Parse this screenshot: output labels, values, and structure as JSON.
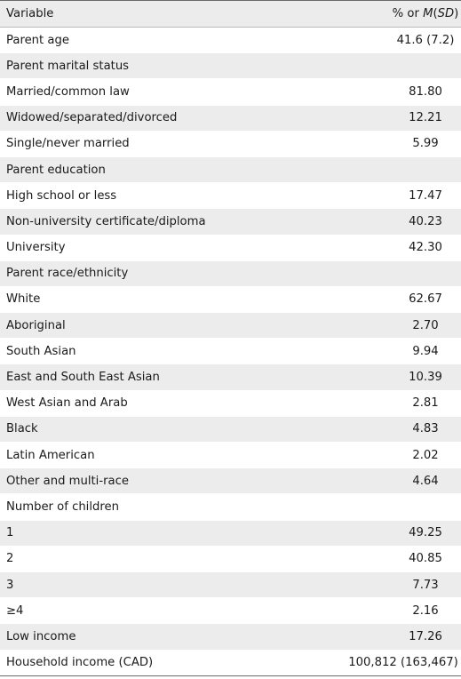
{
  "header": {
    "variable": "Variable",
    "value_prefix": "% or ",
    "value_m": "M",
    "value_open": "(",
    "value_sd": "SD",
    "value_close": ")"
  },
  "rows": [
    {
      "label": "Parent age",
      "value": "41.6 (7.2)"
    },
    {
      "label": "Parent marital status",
      "value": ""
    },
    {
      "label": "Married/common law",
      "value": "81.80"
    },
    {
      "label": "Widowed/separated/divorced",
      "value": "12.21"
    },
    {
      "label": "Single/never married",
      "value": "5.99"
    },
    {
      "label": "Parent education",
      "value": ""
    },
    {
      "label": "High school or less",
      "value": "17.47"
    },
    {
      "label": "Non-university certificate/diploma",
      "value": "40.23"
    },
    {
      "label": "University",
      "value": "42.30"
    },
    {
      "label": "Parent race/ethnicity",
      "value": ""
    },
    {
      "label": "White",
      "value": "62.67"
    },
    {
      "label": "Aboriginal",
      "value": "2.70"
    },
    {
      "label": "South Asian",
      "value": "9.94"
    },
    {
      "label": "East and South East Asian",
      "value": "10.39"
    },
    {
      "label": "West Asian and Arab",
      "value": "2.81"
    },
    {
      "label": "Black",
      "value": "4.83"
    },
    {
      "label": "Latin American",
      "value": "2.02"
    },
    {
      "label": "Other and multi-race",
      "value": "4.64"
    },
    {
      "label": "Number of children",
      "value": ""
    },
    {
      "label": "1",
      "value": "49.25"
    },
    {
      "label": "2",
      "value": "40.85"
    },
    {
      "label": "3",
      "value": "7.73"
    },
    {
      "label": "≥4",
      "value": "2.16"
    },
    {
      "label": "Low income",
      "value": "17.26"
    },
    {
      "label": "Household income (CAD)",
      "value": "100,812 (163,467)"
    }
  ]
}
